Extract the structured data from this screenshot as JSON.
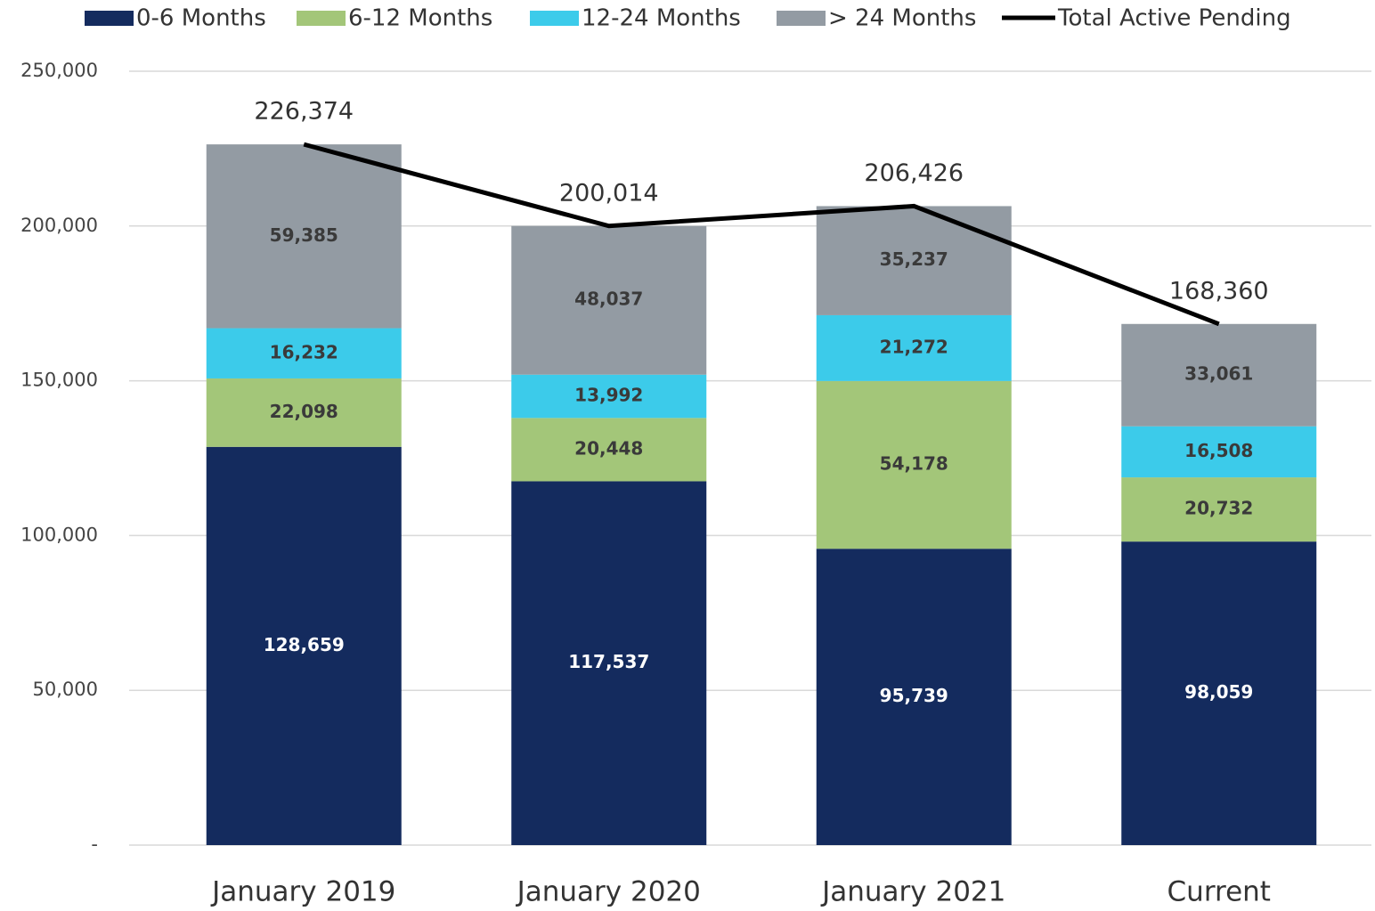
{
  "chart_data": {
    "type": "stacked-bar-line",
    "categories": [
      "January 2019",
      "January 2020",
      "January 2021",
      "Current"
    ],
    "series": [
      {
        "name": "0-6 Months",
        "color": "#142b5e",
        "values": [
          128659,
          117537,
          95739,
          98059
        ],
        "value_labels": [
          "128,659",
          "117,537",
          "95,739",
          "98,059"
        ]
      },
      {
        "name": "6-12 Months",
        "color": "#a3c679",
        "values": [
          22098,
          20448,
          54178,
          20732
        ],
        "value_labels": [
          "22,098",
          "20,448",
          "54,178",
          "20,732"
        ]
      },
      {
        "name": "12-24 Months",
        "color": "#3ccbea",
        "values": [
          16232,
          13992,
          21272,
          16508
        ],
        "value_labels": [
          "16,232",
          "13,992",
          "21,272",
          "16,508"
        ]
      },
      {
        "name": "> 24 Months",
        "color": "#939ba3",
        "values": [
          59385,
          48037,
          35237,
          33061
        ],
        "value_labels": [
          "59,385",
          "48,037",
          "35,237",
          "33,061"
        ]
      },
      {
        "name": "Total Active Pending",
        "type": "line",
        "color": "#000000",
        "values": [
          226374,
          200014,
          206426,
          168360
        ],
        "value_labels": [
          "226,374",
          "200,014",
          "206,426",
          "168,360"
        ]
      }
    ],
    "ylim": [
      0,
      250000
    ],
    "yticks": [
      {
        "value": 0,
        "label": "-"
      },
      {
        "value": 50000,
        "label": "50,000"
      },
      {
        "value": 100000,
        "label": "100,000"
      },
      {
        "value": 150000,
        "label": "150,000"
      },
      {
        "value": 200000,
        "label": "200,000"
      },
      {
        "value": 250000,
        "label": "250,000"
      }
    ],
    "grid": true,
    "legend": "top"
  }
}
